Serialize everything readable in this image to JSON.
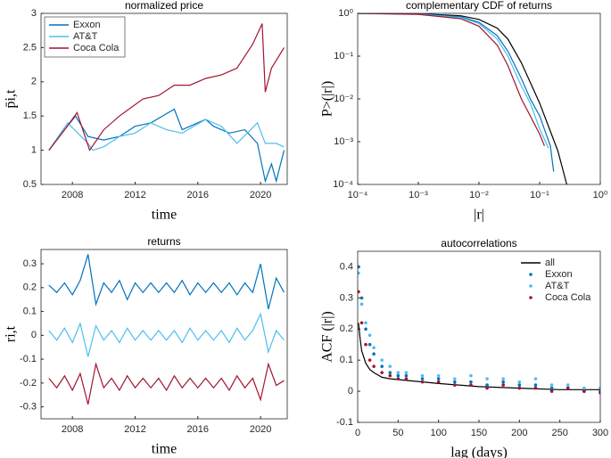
{
  "chart_data": [
    {
      "type": "line",
      "title": "normalized price",
      "xlabel": "time",
      "ylabel": "p̄i,t",
      "xlim": [
        2006,
        2021.7
      ],
      "ylim": [
        0.5,
        3
      ],
      "xticks": [
        2008,
        2012,
        2016,
        2020
      ],
      "yticks": [
        0.5,
        1,
        1.5,
        2,
        2.5,
        3
      ],
      "legend": "upper-left",
      "series": [
        {
          "name": "Exxon",
          "color": "#0072bd",
          "x": [
            2006.5,
            2007.5,
            2008.2,
            2009,
            2010,
            2011,
            2012,
            2013,
            2014.5,
            2015,
            2016.5,
            2017,
            2018,
            2019,
            2019.8,
            2020.3,
            2020.7,
            2021,
            2021.5
          ],
          "values": [
            1,
            1.3,
            1.5,
            1.2,
            1.15,
            1.2,
            1.35,
            1.4,
            1.6,
            1.3,
            1.45,
            1.35,
            1.25,
            1.3,
            1.1,
            0.55,
            0.8,
            0.55,
            1.0
          ]
        },
        {
          "name": "AT&T",
          "color": "#4dbeee",
          "x": [
            2006.5,
            2007.7,
            2009,
            2009.3,
            2010,
            2011,
            2012,
            2013,
            2014,
            2015,
            2016.5,
            2017.5,
            2018.5,
            2019.8,
            2020.3,
            2021,
            2021.5
          ],
          "values": [
            1,
            1.4,
            1.1,
            1.0,
            1.05,
            1.2,
            1.25,
            1.4,
            1.3,
            1.25,
            1.45,
            1.35,
            1.1,
            1.4,
            1.1,
            1.1,
            1.05
          ]
        },
        {
          "name": "Coca Cola",
          "color": "#a2142f",
          "x": [
            2006.5,
            2007.5,
            2008.3,
            2009.1,
            2010,
            2011,
            2012.5,
            2013.5,
            2014.5,
            2015.5,
            2016.5,
            2017.5,
            2018.5,
            2019.5,
            2020.1,
            2020.3,
            2020.7,
            2021.5
          ],
          "values": [
            1,
            1.3,
            1.55,
            1.0,
            1.3,
            1.5,
            1.75,
            1.8,
            1.95,
            1.95,
            2.05,
            2.1,
            2.2,
            2.55,
            2.85,
            1.85,
            2.2,
            2.5
          ]
        }
      ]
    },
    {
      "type": "line",
      "title": "complementary CDF of returns",
      "xlabel": "|r|",
      "ylabel": "P>(|r|)",
      "xscale": "log",
      "yscale": "log",
      "xlim": [
        0.0001,
        1
      ],
      "ylim": [
        0.0001,
        1
      ],
      "xticks": [
        {
          "value": 0.0001,
          "label": "10⁻⁴"
        },
        {
          "value": 0.001,
          "label": "10⁻³"
        },
        {
          "value": 0.01,
          "label": "10⁻²"
        },
        {
          "value": 0.1,
          "label": "10⁻¹"
        },
        {
          "value": 1,
          "label": "10⁰"
        }
      ],
      "yticks": [
        {
          "value": 0.0001,
          "label": "10⁻⁴"
        },
        {
          "value": 0.001,
          "label": "10⁻³"
        },
        {
          "value": 0.01,
          "label": "10⁻²"
        },
        {
          "value": 0.1,
          "label": "10⁻¹"
        },
        {
          "value": 1,
          "label": "10⁰"
        }
      ],
      "series": [
        {
          "color": "#000000",
          "x": [
            0.0001,
            0.001,
            0.005,
            0.01,
            0.02,
            0.03,
            0.05,
            0.1,
            0.2,
            0.28
          ],
          "values": [
            1,
            0.98,
            0.88,
            0.72,
            0.45,
            0.25,
            0.07,
            0.008,
            0.0006,
            0.0001
          ]
        },
        {
          "color": "#0072bd",
          "x": [
            0.0001,
            0.001,
            0.005,
            0.01,
            0.02,
            0.03,
            0.05,
            0.07,
            0.1,
            0.15,
            0.17
          ],
          "values": [
            1,
            0.97,
            0.83,
            0.62,
            0.3,
            0.13,
            0.03,
            0.01,
            0.004,
            0.0008,
            0.0002
          ]
        },
        {
          "color": "#4dbeee",
          "x": [
            0.0001,
            0.001,
            0.005,
            0.01,
            0.02,
            0.03,
            0.05,
            0.07,
            0.1,
            0.14
          ],
          "values": [
            1,
            0.96,
            0.8,
            0.58,
            0.25,
            0.1,
            0.02,
            0.008,
            0.002,
            0.0007
          ]
        },
        {
          "color": "#a2142f",
          "x": [
            0.0001,
            0.001,
            0.005,
            0.01,
            0.02,
            0.03,
            0.05,
            0.07,
            0.1,
            0.12
          ],
          "values": [
            1,
            0.95,
            0.75,
            0.5,
            0.18,
            0.06,
            0.01,
            0.004,
            0.0015,
            0.0008
          ]
        }
      ]
    },
    {
      "type": "line",
      "title": "returns",
      "xlabel": "time",
      "ylabel": "ri,t",
      "xlim": [
        2006,
        2021.7
      ],
      "ylim": [
        -0.35,
        0.36
      ],
      "xticks": [
        2008,
        2012,
        2016,
        2020
      ],
      "yticks": [
        -0.3,
        -0.2,
        -0.1,
        0,
        0.1,
        0.2,
        0.3
      ],
      "x": [
        2006.5,
        2007,
        2007.5,
        2008,
        2008.5,
        2009,
        2009.5,
        2010,
        2010.5,
        2011,
        2011.5,
        2012,
        2012.5,
        2013,
        2013.5,
        2014,
        2014.5,
        2015,
        2015.5,
        2016,
        2016.5,
        2017,
        2017.5,
        2018,
        2018.5,
        2019,
        2019.5,
        2020,
        2020.5,
        2021,
        2021.5
      ],
      "series": [
        {
          "name": "Exxon",
          "color": "#0072bd",
          "values": [
            0.21,
            0.18,
            0.22,
            0.17,
            0.23,
            0.34,
            0.13,
            0.22,
            0.18,
            0.23,
            0.15,
            0.22,
            0.18,
            0.22,
            0.18,
            0.22,
            0.18,
            0.23,
            0.17,
            0.22,
            0.18,
            0.22,
            0.18,
            0.22,
            0.17,
            0.22,
            0.18,
            0.3,
            0.11,
            0.24,
            0.18
          ]
        },
        {
          "name": "AT&T",
          "color": "#4dbeee",
          "values": [
            0.02,
            -0.02,
            0.03,
            -0.03,
            0.05,
            -0.09,
            0.04,
            -0.02,
            0.02,
            -0.03,
            0.03,
            -0.02,
            0.02,
            -0.02,
            0.02,
            -0.02,
            0.02,
            -0.03,
            0.03,
            -0.02,
            0.02,
            -0.02,
            0.02,
            -0.03,
            0.03,
            -0.02,
            0.02,
            0.09,
            -0.07,
            0.02,
            -0.02
          ]
        },
        {
          "name": "Coca Cola",
          "color": "#a2142f",
          "values": [
            -0.18,
            -0.22,
            -0.17,
            -0.23,
            -0.16,
            -0.29,
            -0.12,
            -0.22,
            -0.18,
            -0.23,
            -0.17,
            -0.22,
            -0.18,
            -0.22,
            -0.18,
            -0.23,
            -0.17,
            -0.22,
            -0.18,
            -0.22,
            -0.18,
            -0.22,
            -0.18,
            -0.23,
            -0.17,
            -0.22,
            -0.18,
            -0.27,
            -0.12,
            -0.21,
            -0.19
          ]
        }
      ]
    },
    {
      "type": "scatter",
      "title": "autocorrelations",
      "xlabel": "lag (days)",
      "ylabel": "ACF (|r|)",
      "xlim": [
        0,
        300
      ],
      "ylim": [
        -0.1,
        0.45
      ],
      "xticks": [
        0,
        50,
        100,
        150,
        200,
        250,
        300
      ],
      "yticks": [
        -0.1,
        0,
        0.1,
        0.2,
        0.3,
        0.4
      ],
      "legend": "upper-right",
      "x": [
        1,
        5,
        10,
        15,
        20,
        30,
        40,
        50,
        60,
        80,
        100,
        120,
        140,
        160,
        180,
        200,
        220,
        240,
        260,
        280,
        300
      ],
      "series": [
        {
          "name": "all",
          "type": "line",
          "color": "#000000",
          "x": [
            1,
            3,
            5,
            10,
            15,
            20,
            30,
            40,
            60,
            80,
            100,
            150,
            200,
            250,
            300
          ],
          "values": [
            0.22,
            0.17,
            0.13,
            0.09,
            0.07,
            0.06,
            0.045,
            0.04,
            0.035,
            0.03,
            0.025,
            0.015,
            0.01,
            0.005,
            0.005
          ]
        },
        {
          "name": "Exxon",
          "color": "#0072bd",
          "values": [
            0.4,
            0.3,
            0.2,
            0.15,
            0.12,
            0.08,
            0.06,
            0.05,
            0.05,
            0.04,
            0.04,
            0.03,
            0.03,
            0.02,
            0.03,
            0.02,
            0.02,
            0.01,
            0.01,
            0,
            0
          ]
        },
        {
          "name": "AT&T",
          "color": "#4dbeee",
          "values": [
            0.38,
            0.28,
            0.22,
            0.18,
            0.14,
            0.1,
            0.08,
            0.06,
            0.06,
            0.05,
            0.05,
            0.04,
            0.05,
            0.04,
            0.04,
            0.03,
            0.04,
            0.02,
            0.02,
            0.01,
            0.01
          ]
        },
        {
          "name": "Coca Cola",
          "color": "#a2142f",
          "values": [
            0.32,
            0.22,
            0.15,
            0.1,
            0.08,
            0.06,
            0.05,
            0.04,
            0.04,
            0.03,
            0.03,
            0.02,
            0.02,
            0.01,
            0.02,
            0.01,
            0.01,
            0,
            0.01,
            0,
            -0.005
          ]
        }
      ]
    }
  ]
}
